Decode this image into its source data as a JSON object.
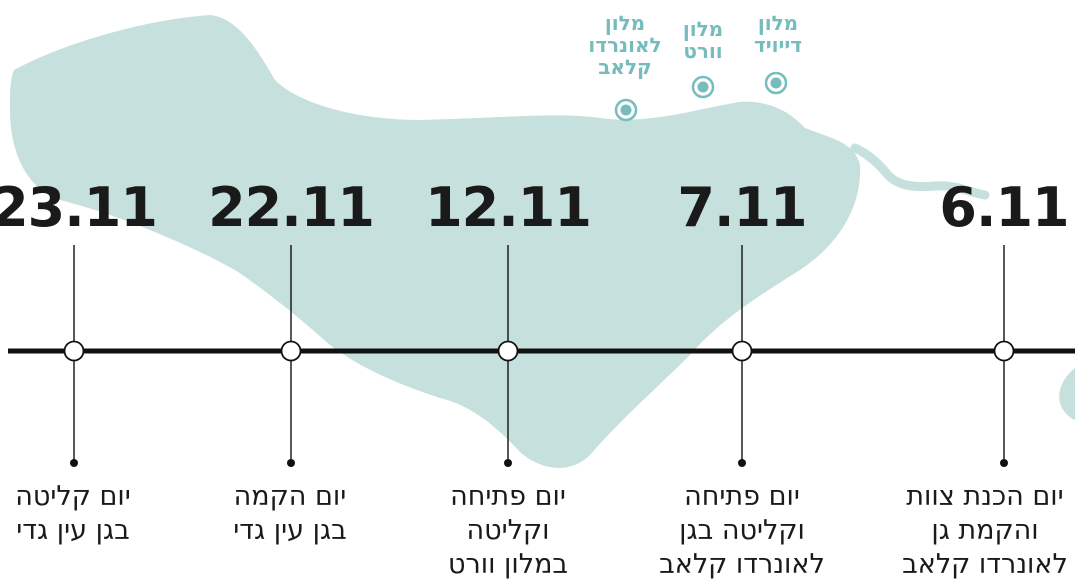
{
  "milestones": [
    {
      "date": "23.11",
      "event_lines": [
        "יום קליטה",
        "בגן עין גדי"
      ]
    },
    {
      "date": "22.11",
      "event_lines": [
        "יום הקמה",
        "בגן עין גדי"
      ]
    },
    {
      "date": "12.11",
      "event_lines": [
        "יום פתיחה",
        "וקליטה",
        "במלון וורט"
      ]
    },
    {
      "date": "7.11",
      "event_lines": [
        "יום פתיחה",
        "וקליטה בגן",
        "לאונרדו קלאב"
      ]
    },
    {
      "date": "6.11",
      "event_lines": [
        "יום הכנת צוות",
        "והקמת גן",
        "לאונרדו קלאב"
      ]
    }
  ],
  "hotels": [
    {
      "name_lines": [
        "מלון",
        "לאונרדו",
        "קלאב"
      ]
    },
    {
      "name_lines": [
        "מלון",
        "וורט"
      ]
    },
    {
      "name_lines": [
        "מלון",
        "דייויד"
      ]
    }
  ],
  "colors": {
    "sea": "#c6e0dd",
    "hotel_text": "#77bcbc",
    "timeline": "#111111",
    "text": "#1a1a1a"
  }
}
